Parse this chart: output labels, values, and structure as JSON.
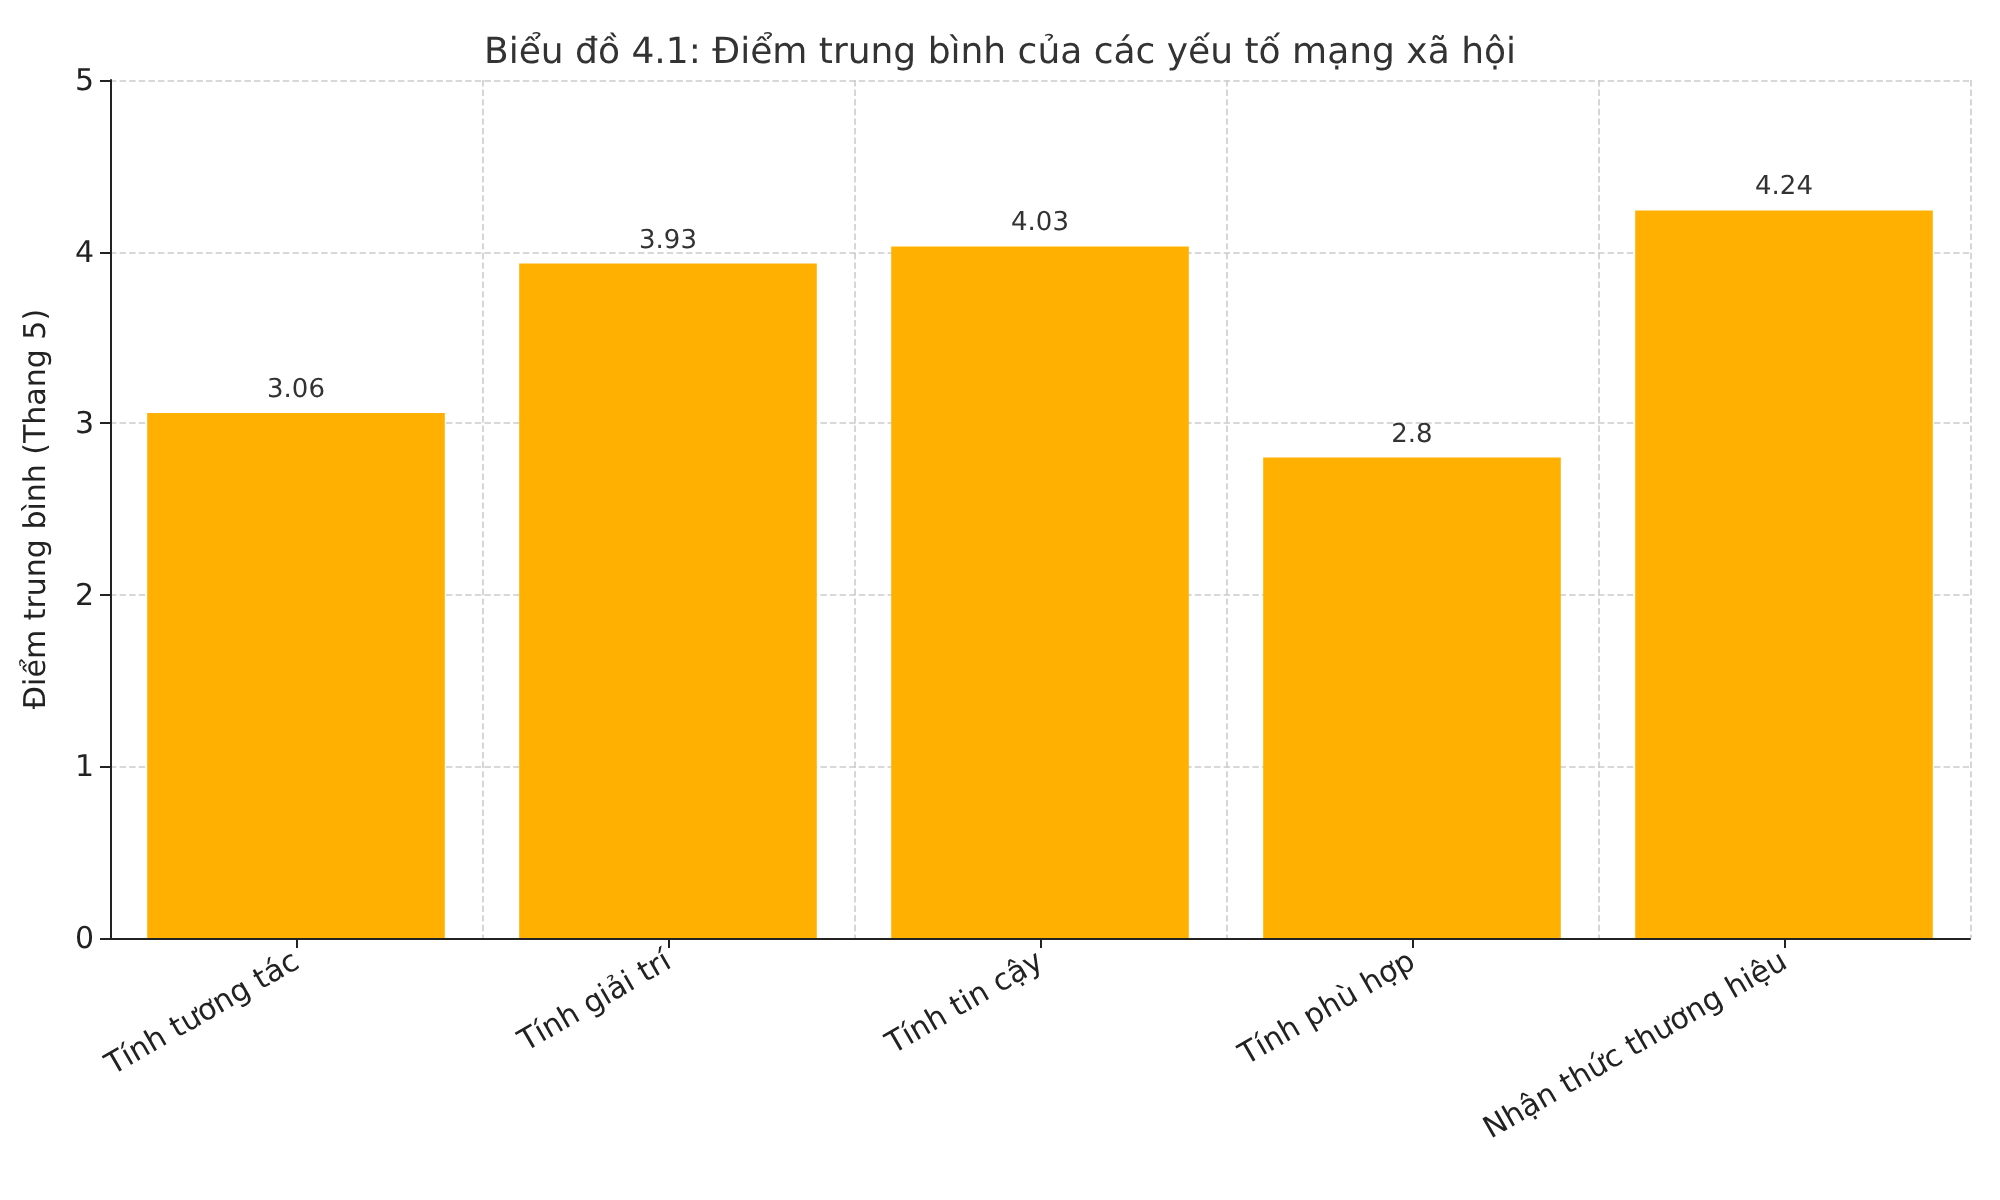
{
  "chart_data": {
    "type": "bar",
    "title": "Biểu đồ 4.1: Điểm trung bình của các yếu tố mạng xã hội",
    "ylabel": "Điểm trung bình (Thang 5)",
    "categories": [
      "Tính tương tác",
      "Tính giải trí",
      "Tính tin cậy",
      "Tính phù hợp",
      "Nhận thức thương hiệu"
    ],
    "values": [
      3.06,
      3.93,
      4.03,
      2.8,
      4.24
    ],
    "color": "#ffb000",
    "data_labels": true,
    "ylim": [
      0,
      5
    ],
    "yticks": [
      0,
      1,
      2,
      3,
      4,
      5
    ],
    "grid": true
  }
}
